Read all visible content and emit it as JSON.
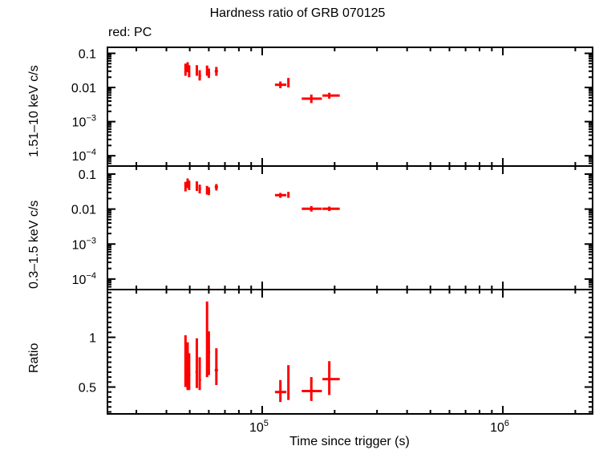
{
  "title": "Hardness ratio of GRB 070125",
  "subtitle": "red: PC",
  "xlabel": "Time since trigger (s)",
  "colors": {
    "series": "#ff0000",
    "axes": "#000000",
    "background": "#ffffff"
  },
  "chart_data": [
    {
      "type": "scatter",
      "panel": "top",
      "title": "Hardness ratio of GRB 070125",
      "xlabel": "Time since trigger (s)",
      "ylabel": "1.51–10 keV c/s",
      "xscale": "log",
      "yscale": "log",
      "xlim": [
        22750,
        2360000
      ],
      "ylim": [
        5e-05,
        0.15
      ],
      "yticks": [
        {
          "v": 0.1,
          "label": "0.1"
        },
        {
          "v": 0.01,
          "label": "0.01"
        },
        {
          "v": 0.001,
          "label": "10⁻³"
        },
        {
          "v": 0.0001,
          "label": "10⁻⁴"
        }
      ],
      "series": [
        {
          "name": "PC",
          "color": "#ff0000",
          "points": [
            {
              "x": 48000,
              "xlo": 47700,
              "xhi": 48300,
              "y": 0.035,
              "ylo": 0.022,
              "yhi": 0.05
            },
            {
              "x": 49000,
              "xlo": 48700,
              "xhi": 49300,
              "y": 0.04,
              "ylo": 0.028,
              "yhi": 0.055
            },
            {
              "x": 49700,
              "xlo": 49400,
              "xhi": 50000,
              "y": 0.03,
              "ylo": 0.02,
              "yhi": 0.045
            },
            {
              "x": 53500,
              "xlo": 53000,
              "xhi": 54000,
              "y": 0.032,
              "ylo": 0.022,
              "yhi": 0.045
            },
            {
              "x": 55000,
              "xlo": 54500,
              "xhi": 55700,
              "y": 0.022,
              "ylo": 0.016,
              "yhi": 0.032
            },
            {
              "x": 59000,
              "xlo": 58600,
              "xhi": 59400,
              "y": 0.03,
              "ylo": 0.022,
              "yhi": 0.044
            },
            {
              "x": 60000,
              "xlo": 59600,
              "xhi": 60800,
              "y": 0.026,
              "ylo": 0.019,
              "yhi": 0.036
            },
            {
              "x": 64500,
              "xlo": 63500,
              "xhi": 65500,
              "y": 0.03,
              "ylo": 0.022,
              "yhi": 0.04
            },
            {
              "x": 119000,
              "xlo": 113000,
              "xhi": 126000,
              "y": 0.012,
              "ylo": 0.0095,
              "yhi": 0.015
            },
            {
              "x": 128500,
              "xlo": 127500,
              "xhi": 129500,
              "y": 0.014,
              "ylo": 0.01,
              "yhi": 0.019
            },
            {
              "x": 160000,
              "xlo": 146000,
              "xhi": 177000,
              "y": 0.0047,
              "ylo": 0.0035,
              "yhi": 0.0062
            },
            {
              "x": 190000,
              "xlo": 178000,
              "xhi": 210000,
              "y": 0.0058,
              "ylo": 0.0047,
              "yhi": 0.007
            }
          ]
        }
      ]
    },
    {
      "type": "scatter",
      "panel": "middle",
      "ylabel": "0.3–1.5 keV c/s",
      "xscale": "log",
      "yscale": "log",
      "xlim": [
        22750,
        2360000
      ],
      "ylim": [
        5e-05,
        0.17
      ],
      "yticks": [
        {
          "v": 0.1,
          "label": "0.1"
        },
        {
          "v": 0.01,
          "label": "0.01"
        },
        {
          "v": 0.001,
          "label": "10⁻³"
        },
        {
          "v": 0.0001,
          "label": "10⁻⁴"
        }
      ],
      "series": [
        {
          "name": "PC",
          "color": "#ff0000",
          "points": [
            {
              "x": 48000,
              "xlo": 47700,
              "xhi": 48300,
              "y": 0.045,
              "ylo": 0.032,
              "yhi": 0.06
            },
            {
              "x": 49000,
              "xlo": 48700,
              "xhi": 49300,
              "y": 0.055,
              "ylo": 0.04,
              "yhi": 0.075
            },
            {
              "x": 49700,
              "xlo": 49400,
              "xhi": 50000,
              "y": 0.048,
              "ylo": 0.035,
              "yhi": 0.065
            },
            {
              "x": 53500,
              "xlo": 53000,
              "xhi": 54000,
              "y": 0.045,
              "ylo": 0.033,
              "yhi": 0.062
            },
            {
              "x": 55000,
              "xlo": 54500,
              "xhi": 55700,
              "y": 0.038,
              "ylo": 0.028,
              "yhi": 0.05
            },
            {
              "x": 59000,
              "xlo": 58600,
              "xhi": 59400,
              "y": 0.035,
              "ylo": 0.026,
              "yhi": 0.046
            },
            {
              "x": 60000,
              "xlo": 59600,
              "xhi": 60800,
              "y": 0.032,
              "ylo": 0.025,
              "yhi": 0.042
            },
            {
              "x": 64500,
              "xlo": 63500,
              "xhi": 65500,
              "y": 0.043,
              "ylo": 0.034,
              "yhi": 0.052
            },
            {
              "x": 119000,
              "xlo": 113000,
              "xhi": 126000,
              "y": 0.025,
              "ylo": 0.021,
              "yhi": 0.029
            },
            {
              "x": 128500,
              "xlo": 127500,
              "xhi": 129500,
              "y": 0.026,
              "ylo": 0.021,
              "yhi": 0.031
            },
            {
              "x": 160000,
              "xlo": 146000,
              "xhi": 177000,
              "y": 0.0102,
              "ylo": 0.0085,
              "yhi": 0.0122
            },
            {
              "x": 190000,
              "xlo": 178000,
              "xhi": 210000,
              "y": 0.0102,
              "ylo": 0.0088,
              "yhi": 0.0118
            }
          ]
        }
      ]
    },
    {
      "type": "scatter",
      "panel": "bottom",
      "ylabel": "Ratio",
      "xlabel": "Time since trigger (s)",
      "xscale": "log",
      "yscale": "linear",
      "xlim": [
        22750,
        2360000
      ],
      "ylim": [
        0.23,
        1.48
      ],
      "yticks": [
        {
          "v": 1,
          "label": "1"
        },
        {
          "v": 0.5,
          "label": "0.5"
        }
      ],
      "xticks": [
        {
          "v": 100000,
          "label": "10⁵"
        },
        {
          "v": 1000000,
          "label": "10⁶"
        }
      ],
      "series": [
        {
          "name": "PC",
          "color": "#ff0000",
          "points": [
            {
              "x": 48000,
              "xlo": 47700,
              "xhi": 48300,
              "y": 0.78,
              "ylo": 0.5,
              "yhi": 1.02
            },
            {
              "x": 49000,
              "xlo": 48700,
              "xhi": 49300,
              "y": 0.72,
              "ylo": 0.47,
              "yhi": 0.95
            },
            {
              "x": 49700,
              "xlo": 49400,
              "xhi": 50300,
              "y": 0.62,
              "ylo": 0.47,
              "yhi": 0.84
            },
            {
              "x": 53500,
              "xlo": 52800,
              "xhi": 54000,
              "y": 0.65,
              "ylo": 0.49,
              "yhi": 0.99
            },
            {
              "x": 55000,
              "xlo": 54500,
              "xhi": 55700,
              "y": 0.57,
              "ylo": 0.47,
              "yhi": 0.8
            },
            {
              "x": 59000,
              "xlo": 58600,
              "xhi": 59400,
              "y": 1.05,
              "ylo": 0.6,
              "yhi": 1.36
            },
            {
              "x": 60000,
              "xlo": 59600,
              "xhi": 60800,
              "y": 0.85,
              "ylo": 0.62,
              "yhi": 1.06
            },
            {
              "x": 64500,
              "xlo": 63500,
              "xhi": 65500,
              "y": 0.67,
              "ylo": 0.52,
              "yhi": 0.89
            },
            {
              "x": 119000,
              "xlo": 113000,
              "xhi": 126000,
              "y": 0.45,
              "ylo": 0.35,
              "yhi": 0.57
            },
            {
              "x": 128500,
              "xlo": 127500,
              "xhi": 129500,
              "y": 0.53,
              "ylo": 0.37,
              "yhi": 0.72
            },
            {
              "x": 160000,
              "xlo": 146000,
              "xhi": 177000,
              "y": 0.46,
              "ylo": 0.36,
              "yhi": 0.6
            },
            {
              "x": 190000,
              "xlo": 178000,
              "xhi": 210000,
              "y": 0.58,
              "ylo": 0.42,
              "yhi": 0.76
            }
          ]
        }
      ]
    }
  ]
}
